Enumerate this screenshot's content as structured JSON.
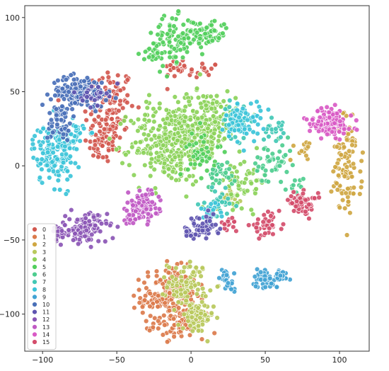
{
  "chart_data": {
    "type": "scatter",
    "title": "",
    "xlabel": "",
    "ylabel": "",
    "xlim": [
      -112,
      120
    ],
    "ylim": [
      -125,
      108
    ],
    "xticks": [
      -100,
      -50,
      0,
      50,
      100
    ],
    "yticks": [
      -100,
      -50,
      0,
      50,
      100
    ],
    "x_tick_labels": [
      "−100",
      "−50",
      "0",
      "50",
      "100"
    ],
    "y_tick_labels": [
      "−100",
      "−50",
      "0",
      "50",
      "100"
    ],
    "grid": false,
    "legend_placement": "bottom-left",
    "marker_edge": "#ffffff",
    "series": [
      {
        "name": "0",
        "color": "#d2584f",
        "clusters": [
          [
            -55,
            37,
            10,
            18,
            130
          ],
          [
            -60,
            15,
            6,
            8,
            40
          ],
          [
            -8,
            66,
            6,
            4,
            18
          ],
          [
            8,
            64,
            6,
            4,
            14
          ]
        ]
      },
      {
        "name": "1",
        "color": "#db7b4c",
        "clusters": [
          [
            -15,
            -88,
            11,
            11,
            190
          ],
          [
            -8,
            -108,
            10,
            5,
            60
          ]
        ]
      },
      {
        "name": "2",
        "color": "#cfa743",
        "clusters": [
          [
            105,
            0,
            6,
            20,
            110
          ],
          [
            74,
            12,
            4,
            5,
            14
          ]
        ]
      },
      {
        "name": "3",
        "color": "#b8c95c",
        "clusters": [
          [
            -2,
            -80,
            8,
            9,
            90
          ],
          [
            3,
            -103,
            7,
            6,
            70
          ],
          [
            25,
            -20,
            5,
            5,
            20
          ]
        ]
      },
      {
        "name": "4",
        "color": "#8cd25a",
        "clusters": [
          [
            -15,
            15,
            15,
            16,
            300
          ],
          [
            10,
            30,
            12,
            12,
            200
          ],
          [
            35,
            -10,
            10,
            10,
            60
          ]
        ]
      },
      {
        "name": "5",
        "color": "#52cf5c",
        "clusters": [
          [
            -10,
            85,
            9,
            9,
            80
          ],
          [
            10,
            90,
            9,
            5,
            70
          ],
          [
            -25,
            75,
            5,
            6,
            30
          ],
          [
            8,
            10,
            6,
            10,
            40
          ]
        ]
      },
      {
        "name": "6",
        "color": "#4ecd8f",
        "clusters": [
          [
            55,
            0,
            8,
            9,
            50
          ],
          [
            20,
            -5,
            6,
            5,
            30
          ],
          [
            70,
            -15,
            4,
            4,
            10
          ]
        ]
      },
      {
        "name": "7",
        "color": "#42c8b5",
        "clusters": [
          [
            30,
            30,
            5,
            7,
            50
          ],
          [
            55,
            25,
            4,
            5,
            20
          ],
          [
            20,
            -25,
            6,
            5,
            30
          ]
        ]
      },
      {
        "name": "8",
        "color": "#3cc4d9",
        "clusters": [
          [
            -93,
            8,
            8,
            12,
            150
          ],
          [
            -80,
            20,
            6,
            8,
            50
          ],
          [
            35,
            30,
            7,
            8,
            70
          ],
          [
            15,
            -30,
            5,
            4,
            20
          ]
        ]
      },
      {
        "name": "9",
        "color": "#42a3d4",
        "clusters": [
          [
            50,
            -76,
            5,
            4,
            40
          ],
          [
            60,
            -75,
            4,
            3,
            25
          ],
          [
            22,
            -74,
            3,
            3,
            15
          ],
          [
            26,
            -82,
            3,
            3,
            12
          ]
        ]
      },
      {
        "name": "10",
        "color": "#4a70b8",
        "clusters": [
          [
            -75,
            50,
            11,
            6,
            140
          ],
          [
            -88,
            30,
            5,
            8,
            50
          ]
        ]
      },
      {
        "name": "11",
        "color": "#5f55b0",
        "clusters": [
          [
            -65,
            48,
            5,
            4,
            25
          ],
          [
            8,
            -42,
            6,
            5,
            45
          ],
          [
            -2,
            -45,
            4,
            3,
            18
          ]
        ]
      },
      {
        "name": "12",
        "color": "#8b56b5",
        "clusters": [
          [
            -70,
            -42,
            8,
            6,
            110
          ],
          [
            -88,
            -45,
            4,
            4,
            20
          ]
        ]
      },
      {
        "name": "13",
        "color": "#c059c4",
        "clusters": [
          [
            -32,
            -27,
            6,
            6,
            80
          ],
          [
            -40,
            -32,
            4,
            4,
            20
          ]
        ]
      },
      {
        "name": "14",
        "color": "#d95bc6",
        "clusters": [
          [
            95,
            28,
            8,
            6,
            110
          ],
          [
            85,
            30,
            4,
            5,
            20
          ]
        ]
      },
      {
        "name": "15",
        "color": "#d44d6b",
        "clusters": [
          [
            75,
            -25,
            6,
            4,
            60
          ],
          [
            50,
            -40,
            6,
            4,
            40
          ],
          [
            25,
            -40,
            4,
            3,
            14
          ]
        ]
      }
    ]
  }
}
